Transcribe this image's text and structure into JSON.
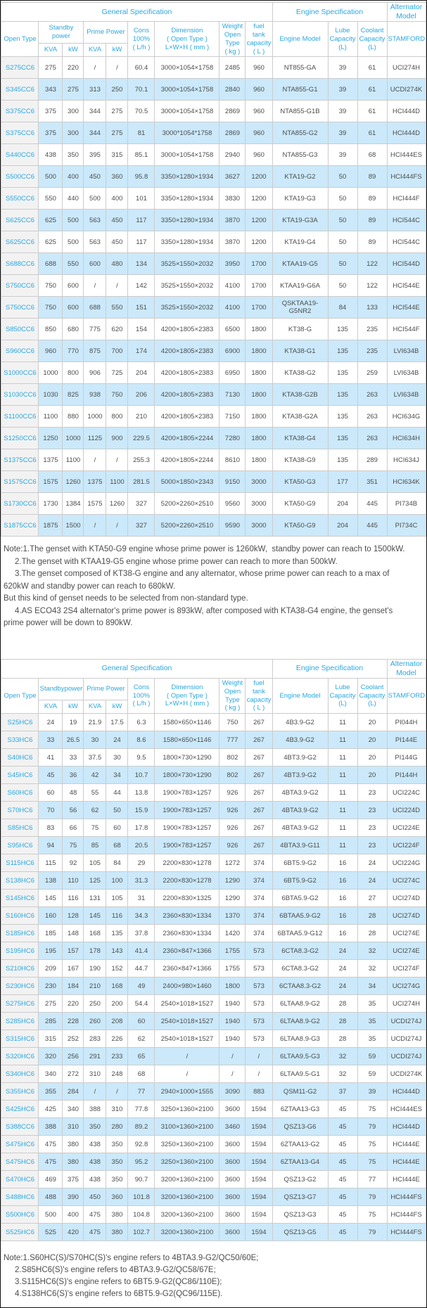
{
  "colors": {
    "accent": "#2BA7E0",
    "row_alternate": "#CBE9FA",
    "first_column_bg": "#F2F2F2",
    "border": "#CCCCCC",
    "text": "#4D4D4D"
  },
  "headers": {
    "general": "General Specification",
    "engine": "Engine Specification",
    "alternator": "Alternator\nModel",
    "open_type": "Open Type",
    "prime": "Prime Power",
    "kva": "KVA",
    "kw": "kW",
    "cons": "Cons\n100%\n( L/h )",
    "dimension": "Dimension\n( Open Type )\nL×W×H ( mm )",
    "weight": "Weight\nOpen Type\n( kg )",
    "fuel": "fuel tank\ncapacity\n( L )",
    "engine_model": "Engine Model",
    "lube": "Lube\nCapacity\n(L)",
    "coolant": "Coolant\nCapacity\n(L)",
    "stamford": "STAMFORD"
  },
  "tables": [
    {
      "standby_label": "Standby\npower",
      "rows": [
        [
          "S275CC6",
          "275",
          "220",
          "/",
          "/",
          "60.4",
          "3000×1054×1758",
          "2485",
          "960",
          "NT855-GA",
          "39",
          "61",
          "UCI274H"
        ],
        [
          "S345CC6",
          "343",
          "275",
          "313",
          "250",
          "70.1",
          "3000×1054×1758",
          "2840",
          "960",
          "NTA855-G1",
          "39",
          "61",
          "UCDI274K"
        ],
        [
          "S375CC6",
          "375",
          "300",
          "344",
          "275",
          "70.5",
          "3000×1054×1758",
          "2869",
          "960",
          "NTA855-G1B",
          "39",
          "61",
          "HCI444D"
        ],
        [
          "S375CC6",
          "375",
          "300",
          "344",
          "275",
          "81",
          "3000*1054*1758",
          "2869",
          "960",
          "NTA855-G2",
          "39",
          "61",
          "HCI444D"
        ],
        [
          "S440CC6",
          "438",
          "350",
          "395",
          "315",
          "85.1",
          "3000×1054×1758",
          "2940",
          "960",
          "NTA855-G3",
          "39",
          "68",
          "HCI444ES"
        ],
        [
          "S500CC6",
          "500",
          "400",
          "450",
          "360",
          "95.8",
          "3350×1280×1934",
          "3627",
          "1200",
          "KTA19-G2",
          "50",
          "89",
          "HCI444FS"
        ],
        [
          "S550CC6",
          "550",
          "440",
          "500",
          "400",
          "101",
          "3350×1280×1934",
          "3830",
          "1200",
          "KTA19-G3",
          "50",
          "89",
          "HCI444F"
        ],
        [
          "S625CC6",
          "625",
          "500",
          "563",
          "450",
          "117",
          "3350×1280×1934",
          "3870",
          "1200",
          "KTA19-G3A",
          "50",
          "89",
          "HCI544C"
        ],
        [
          "S625CC6",
          "625",
          "500",
          "563",
          "450",
          "117",
          "3350×1280×1934",
          "3870",
          "1200",
          "KTA19-G4",
          "50",
          "89",
          "HCI544C"
        ],
        [
          "S688CC6",
          "688",
          "550",
          "600",
          "480",
          "134",
          "3525×1550×2032",
          "3950",
          "1700",
          "KTAA19-G5",
          "50",
          "122",
          "HCI544D"
        ],
        [
          "S750CC6",
          "750",
          "600",
          "/",
          "/",
          "142",
          "3525×1550×2032",
          "4100",
          "1700",
          "KTAA19-G6A",
          "50",
          "122",
          "HCI544E"
        ],
        [
          "S750CC6",
          "750",
          "600",
          "688",
          "550",
          "151",
          "3525×1550×2032",
          "4100",
          "1700",
          "QSKTAA19-G5NR2",
          "84",
          "133",
          "HCI544E"
        ],
        [
          "S850CC6",
          "850",
          "680",
          "775",
          "620",
          "154",
          "4200×1805×2383",
          "6500",
          "1800",
          "KT38-G",
          "135",
          "235",
          "HCI544F"
        ],
        [
          "S960CC6",
          "960",
          "770",
          "875",
          "700",
          "174",
          "4200×1805×2383",
          "6900",
          "1800",
          "KTA38-G1",
          "135",
          "235",
          "LVI634B"
        ],
        [
          "S1000CC6",
          "1000",
          "800",
          "906",
          "725",
          "204",
          "4200×1805×2383",
          "6950",
          "1800",
          "KTA38-G2",
          "135",
          "259",
          "LVI634B"
        ],
        [
          "S1030CC6",
          "1030",
          "825",
          "938",
          "750",
          "206",
          "4200×1805×2383",
          "7130",
          "1800",
          "KTA38-G2B",
          "135",
          "263",
          "LVI634B"
        ],
        [
          "S1100CC6",
          "1100",
          "880",
          "1000",
          "800",
          "210",
          "4200×1805×2383",
          "7150",
          "1800",
          "KTA38-G2A",
          "135",
          "263",
          "HCI634G"
        ],
        [
          "S1250CC6",
          "1250",
          "1000",
          "1125",
          "900",
          "229.5",
          "4200×1805×2244",
          "7280",
          "1800",
          "KTA38-G4",
          "135",
          "263",
          "HCI634H"
        ],
        [
          "S1375CC6",
          "1375",
          "1100",
          "/",
          "/",
          "255.3",
          "4200×1805×2244",
          "8610",
          "1800",
          "KTA38-G9",
          "135",
          "289",
          "HCI634J"
        ],
        [
          "S1575CC6",
          "1575",
          "1260",
          "1375",
          "1100",
          "281.5",
          "5000×1850×2343",
          "9150",
          "3000",
          "KTA50-G3",
          "177",
          "351",
          "HCI634K"
        ],
        [
          "S1730CC6",
          "1730",
          "1384",
          "1575",
          "1260",
          "327",
          "5200×2260×2510",
          "9560",
          "3000",
          "KTA50-G9",
          "204",
          "445",
          "PI734B"
        ],
        [
          "S1875CC6",
          "1875",
          "1500",
          "/",
          "/",
          "327",
          "5200×2260×2510",
          "9590",
          "3000",
          "KTA50-G9",
          "204",
          "445",
          "PI734C"
        ]
      ],
      "note": "Note:1.The genset with KTA50-G9 engine whose prime power is 1260kW,  standby power can reach to 1500kW.\n     2.The genset with KTAA19-G5 engine whose prime power can reach to more than 500kW.\n     3.The genset composed of KT38-G engine and any alternator, whose prime power can reach to a max of 620kW and standby power can reach to 680kW.\nBut this kind of genset needs to be selected from non-standard type.\n     4.AS ECO43 2S4 alternator's prime power is 893kW, after composed with KTA38-G4 engine, the genset's prime power will be down to 890kW."
    },
    {
      "standby_label": "Standbypower",
      "rows": [
        [
          "S25HC6",
          "24",
          "19",
          "21.9",
          "17.5",
          "6.3",
          "1580×650×1146",
          "750",
          "267",
          "4B3.9-G2",
          "11",
          "20",
          "PI044H"
        ],
        [
          "S33HC6",
          "33",
          "26.5",
          "30",
          "24",
          "8.6",
          "1580×650×1146",
          "777",
          "267",
          "4B3.9-G2",
          "11",
          "20",
          "PI144E"
        ],
        [
          "S40HC6",
          "41",
          "33",
          "37.5",
          "30",
          "9.5",
          "1800×730×1290",
          "802",
          "267",
          "4BT3.9-G2",
          "11",
          "20",
          "PI144G"
        ],
        [
          "S45HC6",
          "45",
          "36",
          "42",
          "34",
          "10.7",
          "1800×730×1290",
          "802",
          "267",
          "4BT3.9-G2",
          "11",
          "20",
          "PI144H"
        ],
        [
          "S60HC6",
          "60",
          "48",
          "55",
          "44",
          "13.8",
          "1900×783×1257",
          "926",
          "267",
          "4BTA3.9-G2",
          "11",
          "23",
          "UCI224C"
        ],
        [
          "S70HC6",
          "70",
          "56",
          "62",
          "50",
          "15.9",
          "1900×783×1257",
          "926",
          "267",
          "4BTA3.9-G2",
          "11",
          "23",
          "UCI224D"
        ],
        [
          "S85HC6",
          "83",
          "66",
          "75",
          "60",
          "17.8",
          "1900×783×1257",
          "926",
          "267",
          "4BTA3.9-G2",
          "11",
          "23",
          "UCI224E"
        ],
        [
          "S95HC6",
          "94",
          "75",
          "85",
          "68",
          "20.5",
          "1900×783×1257",
          "926",
          "267",
          "4BTA3.9-G11",
          "11",
          "23",
          "UCI224F"
        ],
        [
          "S115HC6",
          "115",
          "92",
          "105",
          "84",
          "29",
          "2200×830×1278",
          "1272",
          "374",
          "6BT5.9-G2",
          "16",
          "24",
          "UCI224G"
        ],
        [
          "S138HC6",
          "138",
          "110",
          "125",
          "100",
          "31.3",
          "2200×830×1278",
          "1290",
          "374",
          "6BT5.9-G2",
          "16",
          "24",
          "UCI274C"
        ],
        [
          "S145HC6",
          "145",
          "116",
          "131",
          "105",
          "31",
          "2200×830×1325",
          "1290",
          "374",
          "6BTA5.9-G2",
          "16",
          "27",
          "UCI274D"
        ],
        [
          "S160HC6",
          "160",
          "128",
          "145",
          "116",
          "34.3",
          "2360×830×1334",
          "1370",
          "374",
          "6BTAA5.9-G2",
          "16",
          "28",
          "UCI274D"
        ],
        [
          "S185HC6",
          "185",
          "148",
          "168",
          "135",
          "37.8",
          "2360×830×1334",
          "1420",
          "374",
          "6BTAA5.9-G12",
          "16",
          "28",
          "UCI274E"
        ],
        [
          "S195HC6",
          "195",
          "157",
          "178",
          "143",
          "41.4",
          "2360×847×1366",
          "1755",
          "573",
          "6CTA8.3-G2",
          "24",
          "32",
          "UCI274E"
        ],
        [
          "S210HC6",
          "209",
          "167",
          "190",
          "152",
          "44.7",
          "2360×847×1366",
          "1755",
          "573",
          "6CTA8.3-G2",
          "24",
          "32",
          "UCI274F"
        ],
        [
          "S230HC6",
          "230",
          "184",
          "210",
          "168",
          "49",
          "2400×980×1460",
          "1800",
          "573",
          "6CTAA8.3-G2",
          "24",
          "34",
          "UCI274G"
        ],
        [
          "S275HC6",
          "275",
          "220",
          "250",
          "200",
          "54.4",
          "2540×1018×1527",
          "1940",
          "573",
          "6LTAA8.9-G2",
          "28",
          "35",
          "UCI274H"
        ],
        [
          "S285HC6",
          "285",
          "228",
          "260",
          "208",
          "60",
          "2540×1018×1527",
          "1940",
          "573",
          "6LTAA8.9-G2",
          "28",
          "35",
          "UCDI274J"
        ],
        [
          "S315HC6",
          "315",
          "252",
          "283",
          "226",
          "62",
          "2540×1018×1527",
          "1940",
          "573",
          "6LTAA8.9-G3",
          "28",
          "35",
          "UCDI274J"
        ],
        [
          "S320HC6",
          "320",
          "256",
          "291",
          "233",
          "65",
          "/",
          "/",
          "/",
          "6LTAA9.5-G3",
          "32",
          "59",
          "UCDI274J"
        ],
        [
          "S340HC6",
          "340",
          "272",
          "310",
          "248",
          "68",
          "/",
          "/",
          "/",
          "6LTAA9.5-G1",
          "32",
          "59",
          "UCDI274K"
        ],
        [
          "S355HC6",
          "355",
          "284",
          "/",
          "/",
          "77",
          "2940×1000×1555",
          "3090",
          "883",
          "QSM11-G2",
          "37",
          "39",
          "HCI444D"
        ],
        [
          "S425HC6",
          "425",
          "340",
          "388",
          "310",
          "77.8",
          "3250×1360×2100",
          "3600",
          "1594",
          "6ZTAA13-G3",
          "45",
          "75",
          "HCI444ES"
        ],
        [
          "S388CC6",
          "388",
          "310",
          "350",
          "280",
          "89.2",
          "3100×1360×2100",
          "3460",
          "1594",
          "QSZ13-G6",
          "45",
          "79",
          "HCI444D"
        ],
        [
          "S475HC6",
          "475",
          "380",
          "438",
          "350",
          "92.8",
          "3250×1360×2100",
          "3600",
          "1594",
          "6ZTAA13-G2",
          "45",
          "75",
          "HCI444E"
        ],
        [
          "S475HC6",
          "475",
          "380",
          "438",
          "350",
          "95.2",
          "3250×1360×2100",
          "3600",
          "1594",
          "6ZTAA13-G4",
          "45",
          "75",
          "HCI444E"
        ],
        [
          "S470HC6",
          "469",
          "375",
          "438",
          "350",
          "90.7",
          "3200×1360×2100",
          "3600",
          "1594",
          "QSZ13-G2",
          "45",
          "77",
          "HCI444E"
        ],
        [
          "S488HC6",
          "488",
          "390",
          "450",
          "360",
          "101.8",
          "3200×1360×2100",
          "3600",
          "1594",
          "QSZ13-G7",
          "45",
          "79",
          "HCI444FS"
        ],
        [
          "S500HC6",
          "500",
          "400",
          "475",
          "380",
          "104.8",
          "3200×1360×2100",
          "3600",
          "1594",
          "QSZ13-G3",
          "45",
          "75",
          "HCI444FS"
        ],
        [
          "S525HC6",
          "525",
          "420",
          "475",
          "380",
          "102.7",
          "3200×1360×2100",
          "3600",
          "1594",
          "QSZ13-G5",
          "45",
          "79",
          "HCI444FS"
        ]
      ],
      "note": "Note:1.S60HC(S)/S70HC(S)'s engine refers to 4BTA3.9-G2/QC50/60E;\n     2.S85HC6(S)'s engine refers to 4BTA3.9-G2/QC58/67E;\n     3.S115HC6(S)'s engine refers to 6BT5.9-G2(QC86/110E);\n     4.S138HC6(S)'s engine refers to 6BT5.9-G2(QC96/115E)."
    }
  ]
}
